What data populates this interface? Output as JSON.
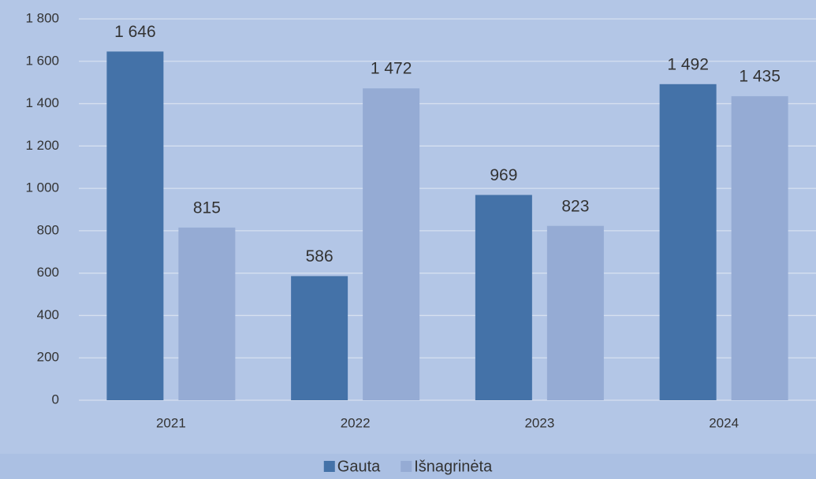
{
  "chart_data": {
    "type": "bar",
    "categories": [
      "2021",
      "2022",
      "2023",
      "2024"
    ],
    "series": [
      {
        "name": "Gauta",
        "color": "#4472a8",
        "values": [
          1646,
          586,
          969,
          1492
        ],
        "value_labels": [
          "1 646",
          "586",
          "969",
          "1 492"
        ]
      },
      {
        "name": "Išnagrinėta",
        "color": "#95abd4",
        "values": [
          815,
          1472,
          823,
          1435
        ],
        "value_labels": [
          "815",
          "1 472",
          "823",
          "1 435"
        ]
      }
    ],
    "ylim": [
      0,
      1800
    ],
    "yticks": [
      0,
      200,
      400,
      600,
      800,
      {
        "value": 1000,
        "label": "1 000"
      },
      {
        "value": 1200,
        "label": "1 200"
      },
      {
        "value": 1400,
        "label": "1 400"
      },
      {
        "value": 1600,
        "label": "1 600"
      },
      {
        "value": 1800,
        "label": "1 800"
      }
    ],
    "grid": true,
    "legend": "bottom"
  }
}
